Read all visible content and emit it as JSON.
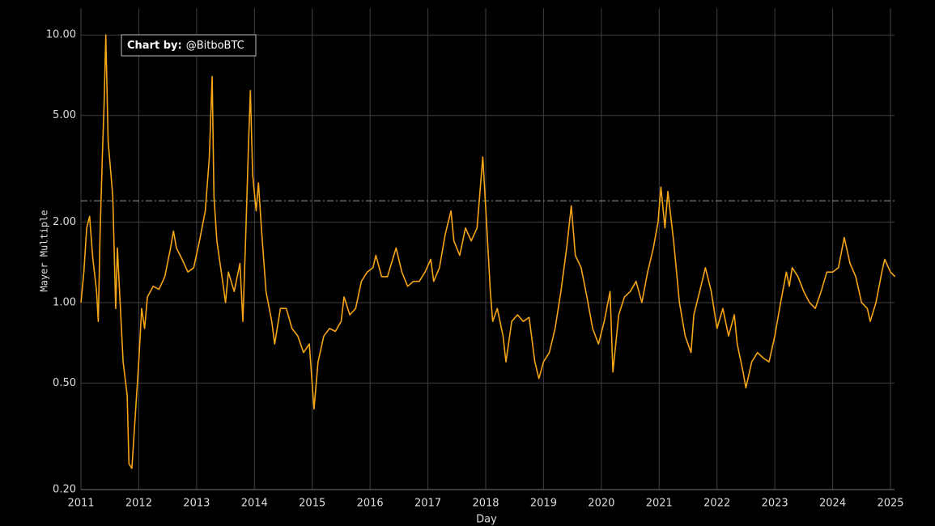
{
  "chart_data": {
    "type": "line",
    "annotation_label": "Chart by:",
    "annotation_text": "@BitboBTC",
    "x_label": "Day",
    "y_label": "Mayer Multiple",
    "y_scale": "log",
    "grid": true,
    "xlim": [
      2011,
      2025.07
    ],
    "ylim": [
      0.2,
      12.6
    ],
    "xticks": [
      2011,
      2012,
      2013,
      2014,
      2015,
      2016,
      2017,
      2018,
      2019,
      2020,
      2021,
      2022,
      2023,
      2024,
      2025
    ],
    "yticks": [
      {
        "value": 0.2,
        "label": "0.20"
      },
      {
        "value": 0.5,
        "label": "0.50"
      },
      {
        "value": 1,
        "label": "1.00"
      },
      {
        "value": 2,
        "label": "2.00"
      },
      {
        "value": 5,
        "label": "5.00"
      },
      {
        "value": 10,
        "label": "10.00"
      }
    ],
    "reference_line": {
      "value": 2.4,
      "color": "#7fa08a"
    },
    "x": [
      2011.0,
      2011.05,
      2011.1,
      2011.15,
      2011.2,
      2011.27,
      2011.3,
      2011.33,
      2011.37,
      2011.4,
      2011.43,
      2011.47,
      2011.52,
      2011.55,
      2011.6,
      2011.63,
      2011.7,
      2011.73,
      2011.8,
      2011.83,
      2011.88,
      2011.93,
      2012.0,
      2012.05,
      2012.1,
      2012.15,
      2012.25,
      2012.35,
      2012.45,
      2012.55,
      2012.6,
      2012.65,
      2012.75,
      2012.85,
      2012.95,
      2013.05,
      2013.15,
      2013.22,
      2013.27,
      2013.3,
      2013.35,
      2013.45,
      2013.5,
      2013.55,
      2013.65,
      2013.75,
      2013.8,
      2013.85,
      2013.9,
      2013.93,
      2013.97,
      2014.03,
      2014.07,
      2014.12,
      2014.2,
      2014.3,
      2014.35,
      2014.45,
      2014.55,
      2014.65,
      2014.75,
      2014.85,
      2014.95,
      2015.03,
      2015.1,
      2015.2,
      2015.3,
      2015.4,
      2015.5,
      2015.55,
      2015.65,
      2015.75,
      2015.85,
      2015.95,
      2016.05,
      2016.1,
      2016.2,
      2016.3,
      2016.45,
      2016.55,
      2016.65,
      2016.75,
      2016.85,
      2016.95,
      2017.05,
      2017.1,
      2017.2,
      2017.3,
      2017.4,
      2017.45,
      2017.55,
      2017.65,
      2017.75,
      2017.85,
      2017.95,
      2018.02,
      2018.08,
      2018.12,
      2018.2,
      2018.3,
      2018.35,
      2018.45,
      2018.55,
      2018.65,
      2018.75,
      2018.85,
      2018.92,
      2019.0,
      2019.1,
      2019.2,
      2019.3,
      2019.4,
      2019.48,
      2019.55,
      2019.65,
      2019.75,
      2019.85,
      2019.95,
      2020.05,
      2020.15,
      2020.2,
      2020.3,
      2020.4,
      2020.5,
      2020.6,
      2020.7,
      2020.8,
      2020.9,
      2020.98,
      2021.03,
      2021.1,
      2021.15,
      2021.25,
      2021.35,
      2021.45,
      2021.55,
      2021.6,
      2021.7,
      2021.8,
      2021.9,
      2022.0,
      2022.1,
      2022.2,
      2022.3,
      2022.35,
      2022.45,
      2022.5,
      2022.6,
      2022.7,
      2022.8,
      2022.9,
      2023.0,
      2023.1,
      2023.2,
      2023.25,
      2023.3,
      2023.4,
      2023.5,
      2023.6,
      2023.7,
      2023.8,
      2023.9,
      2024.0,
      2024.1,
      2024.2,
      2024.3,
      2024.4,
      2024.5,
      2024.6,
      2024.65,
      2024.75,
      2024.85,
      2024.9,
      2025.0,
      2025.08
    ],
    "series": [
      {
        "name": "Mayer Multiple",
        "color": "#f5a516",
        "values": [
          1.0,
          1.3,
          1.9,
          2.1,
          1.5,
          1.1,
          0.85,
          1.8,
          3.5,
          5.5,
          10.0,
          4.0,
          3.0,
          2.5,
          0.95,
          1.6,
          0.8,
          0.6,
          0.45,
          0.25,
          0.24,
          0.35,
          0.6,
          0.95,
          0.8,
          1.05,
          1.15,
          1.12,
          1.25,
          1.6,
          1.85,
          1.6,
          1.45,
          1.3,
          1.35,
          1.7,
          2.2,
          3.5,
          7.0,
          2.5,
          1.7,
          1.2,
          1.0,
          1.3,
          1.1,
          1.4,
          0.85,
          1.8,
          4.0,
          6.2,
          3.0,
          2.2,
          2.8,
          1.9,
          1.1,
          0.85,
          0.7,
          0.95,
          0.95,
          0.8,
          0.75,
          0.65,
          0.7,
          0.4,
          0.6,
          0.75,
          0.8,
          0.78,
          0.85,
          1.05,
          0.9,
          0.95,
          1.2,
          1.3,
          1.35,
          1.5,
          1.25,
          1.25,
          1.6,
          1.3,
          1.15,
          1.2,
          1.2,
          1.3,
          1.45,
          1.2,
          1.35,
          1.8,
          2.2,
          1.7,
          1.5,
          1.9,
          1.7,
          1.9,
          3.5,
          1.9,
          1.1,
          0.85,
          0.95,
          0.75,
          0.6,
          0.85,
          0.9,
          0.85,
          0.88,
          0.6,
          0.52,
          0.6,
          0.65,
          0.8,
          1.1,
          1.6,
          2.3,
          1.5,
          1.35,
          1.05,
          0.8,
          0.7,
          0.85,
          1.1,
          0.55,
          0.9,
          1.05,
          1.1,
          1.2,
          1.0,
          1.3,
          1.6,
          2.0,
          2.7,
          1.9,
          2.6,
          1.7,
          1.0,
          0.75,
          0.65,
          0.9,
          1.1,
          1.35,
          1.1,
          0.8,
          0.95,
          0.75,
          0.9,
          0.7,
          0.55,
          0.48,
          0.6,
          0.65,
          0.62,
          0.6,
          0.75,
          1.0,
          1.3,
          1.15,
          1.35,
          1.25,
          1.1,
          1.0,
          0.95,
          1.1,
          1.3,
          1.3,
          1.35,
          1.75,
          1.4,
          1.25,
          1.0,
          0.95,
          0.85,
          1.0,
          1.3,
          1.45,
          1.3,
          1.25
        ]
      }
    ]
  }
}
